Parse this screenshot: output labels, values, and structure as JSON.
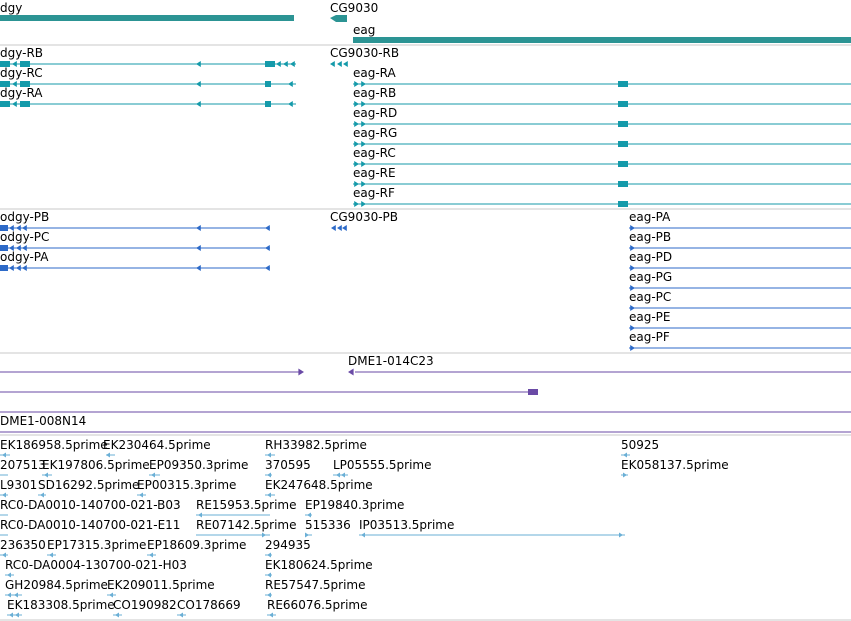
{
  "colors": {
    "gene": "#2c9494",
    "transcript": "#149aaa",
    "protein": "#2d6ac8",
    "clone": "#6a4aa6",
    "est": "#6aafd6",
    "divider": "#c8c8c8",
    "background": "#ffffff",
    "text": "#000000"
  },
  "tracks": {
    "genes": {
      "labels": [
        "dgy",
        "CG9030",
        "eag"
      ]
    },
    "transcripts": {
      "labels": [
        "dgy-RB",
        "dgy-RC",
        "dgy-RA",
        "CG9030-RB",
        "eag-RA",
        "eag-RB",
        "eag-RD",
        "eag-RG",
        "eag-RC",
        "eag-RE",
        "eag-RF"
      ]
    },
    "proteins": {
      "labels": [
        "odgy-PB",
        "odgy-PC",
        "odgy-PA",
        "CG9030-PB",
        "eag-PA",
        "eag-PB",
        "eag-PD",
        "eag-PG",
        "eag-PC",
        "eag-PE",
        "eag-PF"
      ]
    },
    "clones": {
      "labels": [
        "DME1-014C23",
        "DME1-008N14"
      ]
    },
    "ests": {
      "labels": [
        "EK186958.5prime",
        "EK230464.5prime",
        "RH33982.5prime",
        "50925",
        "207513",
        "EK197806.5prime",
        "EP09350.3prime",
        "370595",
        "LP05555.5prime",
        "EK058137.5prime",
        "L9301",
        "SD16292.5prime",
        "EP00315.3prime",
        "EK247648.5prime",
        "RC0-DA0010-140700-021-B03",
        "RE15953.5prime",
        "EP19840.3prime",
        "RC0-DA0010-140700-021-E11",
        "RE07142.5prime",
        "515336",
        "IP03513.5prime",
        "236350",
        "EP17315.3prime",
        "EP18609.3prime",
        "294935",
        "RC0-DA0004-130700-021-H03",
        "EK180624.5prime",
        "GH20984.5prime",
        "EK209011.5prime",
        "RE57547.5prime",
        "EK183308.5prime",
        "CO190982",
        "CO178669",
        "RE66076.5prime"
      ]
    }
  }
}
